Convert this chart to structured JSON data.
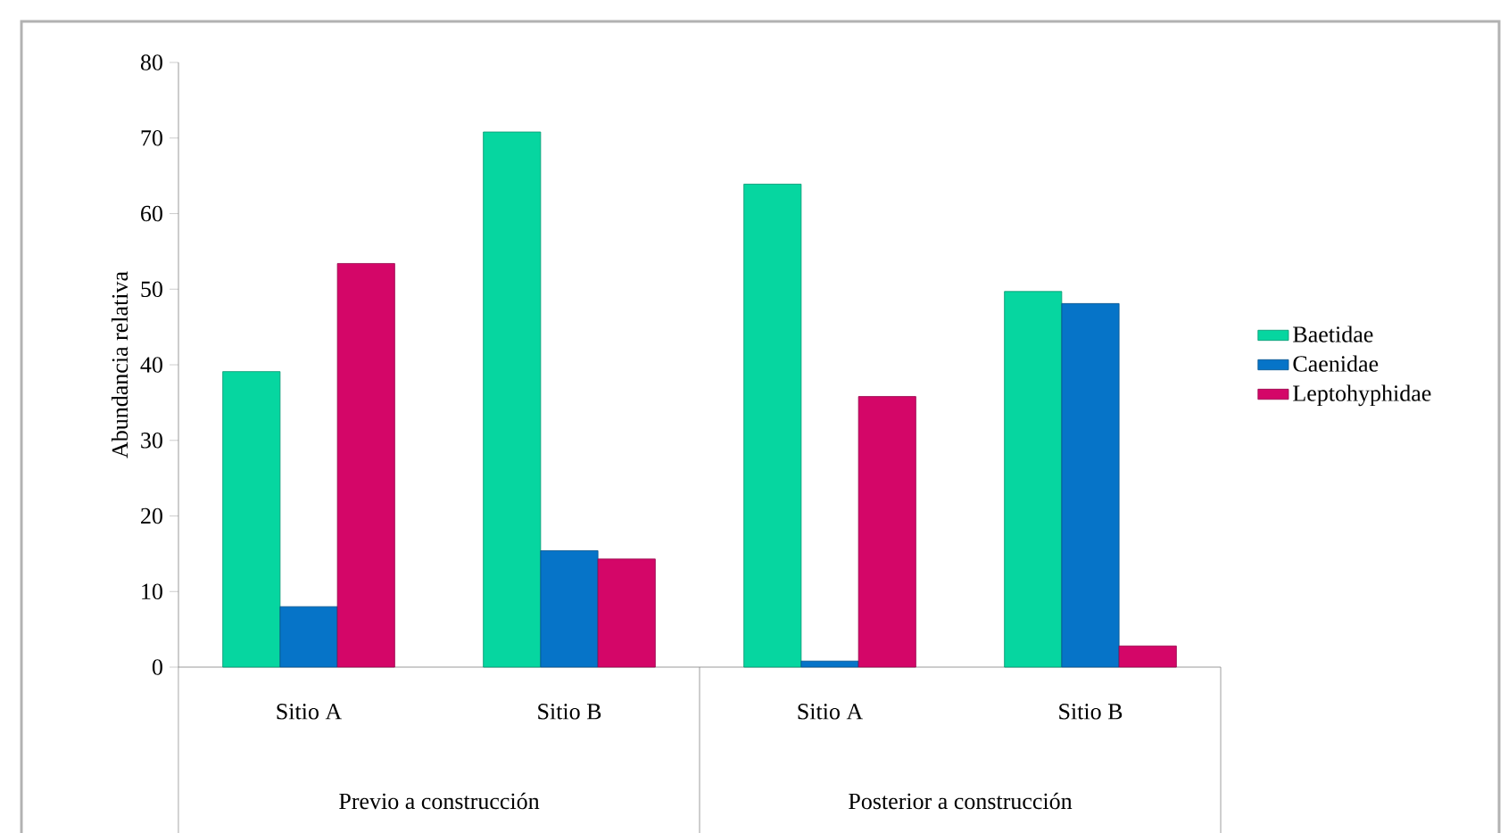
{
  "chart_data": {
    "type": "bar",
    "ylabel": "Abundancia relativa",
    "categories": [
      "Sitio A",
      "Sitio B",
      "Sitio A",
      "Sitio B"
    ],
    "series": [
      {
        "name": "Baetidae",
        "color": "#06d6a0",
        "values": [
          39.1,
          70.8,
          63.9,
          49.7
        ]
      },
      {
        "name": "Caenidae",
        "color": "#0674c8",
        "values": [
          8.0,
          15.4,
          0.8,
          48.1
        ]
      },
      {
        "name": "Leptohyphidae",
        "color": "#d40668",
        "values": [
          53.4,
          14.3,
          35.8,
          2.8
        ]
      }
    ],
    "ylim": [
      0,
      80
    ],
    "yticks": [
      0,
      10,
      20,
      30,
      40,
      50,
      60,
      70,
      80
    ],
    "annotations": [
      "Previo a construcción",
      "Posterior a construcción"
    ],
    "legend": "right",
    "grid": false
  }
}
